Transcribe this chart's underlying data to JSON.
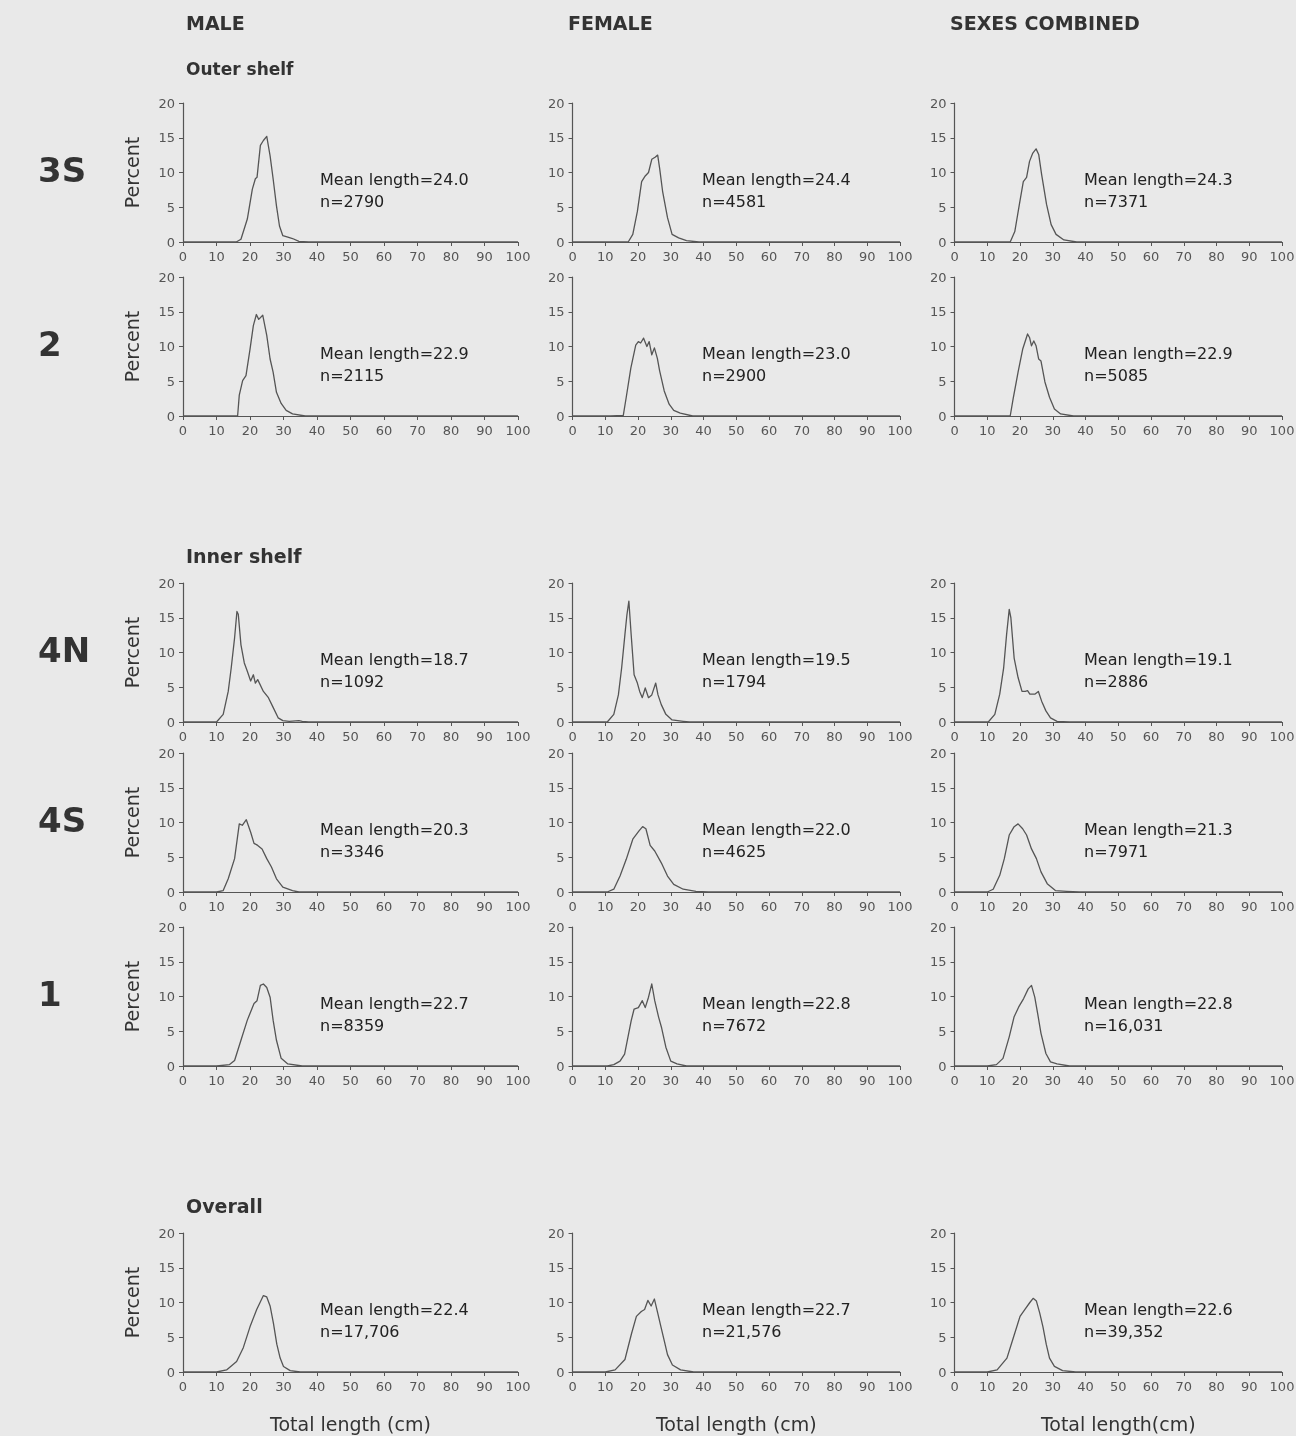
{
  "chart_data": [
    {
      "type": "line",
      "title": "MALE",
      "subtitle": "Outer shelf",
      "ylabel": "Percent",
      "annotations": [
        "3S",
        "Mean length=24.0",
        "n=2790"
      ],
      "color": "#555555",
      "xlim": [
        0,
        100
      ],
      "xticks": [
        0,
        10,
        20,
        30,
        40,
        50,
        60,
        70,
        80,
        90,
        100
      ],
      "ylim": [
        0,
        20
      ],
      "yticks": [
        0,
        5,
        10,
        15,
        20
      ],
      "x": [
        0,
        15.9,
        17.3,
        19.2,
        20.7,
        21.6,
        22.1,
        23.1,
        24.0,
        25.0,
        26.0,
        26.9,
        27.9,
        28.8,
        29.8,
        31.3,
        32.7,
        34.6,
        37.5,
        100
      ],
      "values": [
        0,
        0,
        0.4,
        3.3,
        7.6,
        9.1,
        9.3,
        13.9,
        14.6,
        15.2,
        12.4,
        9.1,
        5.2,
        2.3,
        0.9,
        0.7,
        0.5,
        0.1,
        0,
        0
      ]
    },
    {
      "type": "line",
      "title": "FEMALE",
      "annotations": [
        "Mean length=24.4",
        "n=4581"
      ],
      "color": "#555555",
      "xlim": [
        0,
        100
      ],
      "xticks": [
        0,
        10,
        20,
        30,
        40,
        50,
        60,
        70,
        80,
        90,
        100
      ],
      "ylim": [
        0,
        20
      ],
      "yticks": [
        0,
        5,
        10,
        15,
        20
      ],
      "x": [
        0,
        17,
        18.4,
        19.8,
        21.1,
        22.2,
        23.2,
        24.2,
        25.2,
        26.0,
        26.6,
        27.5,
        29.0,
        30.4,
        32.4,
        34.8,
        38.6,
        100
      ],
      "values": [
        0,
        0,
        1.1,
        4.4,
        8.7,
        9.5,
        10.0,
        11.9,
        12.2,
        12.5,
        10.6,
        7.3,
        3.5,
        1.1,
        0.6,
        0.2,
        0,
        0
      ]
    },
    {
      "type": "line",
      "title": "SEXES COMBINED",
      "annotations": [
        "Mean length=24.3",
        "n=7371"
      ],
      "color": "#555555",
      "xlim": [
        0,
        100
      ],
      "xticks": [
        0,
        10,
        20,
        30,
        40,
        50,
        60,
        70,
        80,
        90,
        100
      ],
      "ylim": [
        0,
        20
      ],
      "yticks": [
        0,
        5,
        10,
        15,
        20
      ],
      "x": [
        0,
        17,
        18.4,
        19.8,
        21.0,
        22.0,
        22.9,
        23.9,
        24.9,
        25.7,
        26.6,
        28.1,
        29.5,
        31.0,
        33.4,
        37.3,
        100
      ],
      "values": [
        0,
        0,
        1.5,
        5.4,
        8.7,
        9.3,
        11.6,
        12.8,
        13.4,
        12.6,
        9.7,
        5.4,
        2.5,
        1.1,
        0.3,
        0,
        0
      ]
    },
    {
      "type": "line",
      "ylabel": "Percent",
      "annotations": [
        "2",
        "Mean length=22.9",
        "n=2115"
      ],
      "color": "#555555",
      "xlim": [
        0,
        100
      ],
      "xticks": [
        0,
        10,
        20,
        30,
        40,
        50,
        60,
        70,
        80,
        90,
        100
      ],
      "ylim": [
        0,
        20
      ],
      "yticks": [
        0,
        5,
        10,
        15,
        20
      ],
      "x": [
        0,
        16.3,
        16.8,
        17.8,
        18.8,
        20.0,
        21.0,
        21.9,
        22.6,
        23.8,
        25.0,
        26.0,
        26.9,
        27.9,
        29.3,
        30.8,
        32.7,
        36.5,
        100
      ],
      "values": [
        0,
        0,
        3.0,
        5.1,
        5.8,
        9.6,
        13.0,
        14.6,
        13.9,
        14.5,
        11.6,
        8.2,
        6.3,
        3.4,
        1.8,
        0.8,
        0.3,
        0,
        0
      ]
    },
    {
      "type": "line",
      "annotations": [
        "Mean length=23.0",
        "n=2900"
      ],
      "color": "#555555",
      "xlim": [
        0,
        100
      ],
      "xticks": [
        0,
        10,
        20,
        30,
        40,
        50,
        60,
        70,
        80,
        90,
        100
      ],
      "ylim": [
        0,
        20
      ],
      "yticks": [
        0,
        5,
        10,
        15,
        20
      ],
      "x": [
        0,
        11.6,
        15.5,
        16.4,
        17.8,
        19.3,
        20.1,
        20.8,
        21.7,
        22.7,
        23.4,
        24.2,
        25.0,
        25.9,
        26.6,
        28.0,
        29.5,
        30.9,
        32.9,
        36.7,
        100
      ],
      "values": [
        0,
        0,
        0.1,
        2.7,
        6.9,
        10.2,
        10.7,
        10.5,
        11.2,
        10.0,
        10.7,
        8.8,
        9.8,
        8.3,
        6.5,
        3.6,
        1.7,
        0.8,
        0.4,
        0,
        0
      ]
    },
    {
      "type": "line",
      "annotations": [
        "Mean length=22.9",
        "n=5085"
      ],
      "color": "#555555",
      "xlim": [
        0,
        100
      ],
      "xticks": [
        0,
        10,
        20,
        30,
        40,
        50,
        60,
        70,
        80,
        90,
        100
      ],
      "ylim": [
        0,
        20
      ],
      "yticks": [
        0,
        5,
        10,
        15,
        20
      ],
      "x": [
        0,
        17,
        17.9,
        19.4,
        20.8,
        22.3,
        22.9,
        23.5,
        24.2,
        24.9,
        25.7,
        26.4,
        27.6,
        29.0,
        30.5,
        32.4,
        36.3,
        100
      ],
      "values": [
        0,
        0,
        2.5,
        6.3,
        9.6,
        11.8,
        11.3,
        10.1,
        10.8,
        10.1,
        8.2,
        7.9,
        4.9,
        2.7,
        1.0,
        0.3,
        0,
        0
      ]
    },
    {
      "type": "line",
      "title": "Inner shelf",
      "ylabel": "Percent",
      "annotations": [
        "4N",
        "Mean length=18.7",
        "n=1092"
      ],
      "color": "#555555",
      "xlim": [
        0,
        100
      ],
      "xticks": [
        0,
        10,
        20,
        30,
        40,
        50,
        60,
        70,
        80,
        90,
        100
      ],
      "ylim": [
        0,
        20
      ],
      "yticks": [
        0,
        5,
        10,
        15,
        20
      ],
      "x": [
        0,
        10,
        12,
        13.5,
        14.4,
        15.4,
        16.1,
        16.5,
        17.3,
        18.3,
        19.2,
        20.2,
        21,
        21.6,
        22.3,
        24,
        25.5,
        26.9,
        28.4,
        29.8,
        31.7,
        34.6,
        35.6,
        37.5,
        100
      ],
      "values": [
        0,
        0,
        1.1,
        4.4,
        7.8,
        12.1,
        15.9,
        15.5,
        11.1,
        8.5,
        7.3,
        5.9,
        6.8,
        5.6,
        6.1,
        4.4,
        3.5,
        2.1,
        0.6,
        0.2,
        0.1,
        0.2,
        0.1,
        0,
        0
      ]
    },
    {
      "type": "line",
      "annotations": [
        "Mean length=19.5",
        "n=1794"
      ],
      "color": "#555555",
      "xlim": [
        0,
        100
      ],
      "xticks": [
        0,
        10,
        20,
        30,
        40,
        50,
        60,
        70,
        80,
        90,
        100
      ],
      "ylim": [
        0,
        20
      ],
      "yticks": [
        0,
        5,
        10,
        15,
        20
      ],
      "x": [
        0,
        10.6,
        12.6,
        14.0,
        15.0,
        16.0,
        16.6,
        17.2,
        17.9,
        18.8,
        19.8,
        20.5,
        21.3,
        22.2,
        23.2,
        24.2,
        25.4,
        26.1,
        27.1,
        28.5,
        30.4,
        33.8,
        35.7,
        100
      ],
      "values": [
        0,
        0,
        1.1,
        3.9,
        7.8,
        12.6,
        15.4,
        17.4,
        12.6,
        6.8,
        5.6,
        4.4,
        3.5,
        4.9,
        3.5,
        3.9,
        5.6,
        3.9,
        2.5,
        1.1,
        0.3,
        0.1,
        0,
        0
      ]
    },
    {
      "type": "line",
      "annotations": [
        "Mean length=19.1",
        "n=2886"
      ],
      "color": "#555555",
      "xlim": [
        0,
        100
      ],
      "xticks": [
        0,
        10,
        20,
        30,
        40,
        50,
        60,
        70,
        80,
        90,
        100
      ],
      "ylim": [
        0,
        20
      ],
      "yticks": [
        0,
        5,
        10,
        15,
        20
      ],
      "x": [
        0,
        10.3,
        12.3,
        13.8,
        15.0,
        15.9,
        16.7,
        17.2,
        18.2,
        19.4,
        20.6,
        21.6,
        22.3,
        23.0,
        24.5,
        25.6,
        26.6,
        27.9,
        29.3,
        31.3,
        35.1,
        100
      ],
      "values": [
        0,
        0,
        1.1,
        4.0,
        7.8,
        12.6,
        16.2,
        15.0,
        9.2,
        6.4,
        4.4,
        4.4,
        4.5,
        4.0,
        4.0,
        4.4,
        3.0,
        1.6,
        0.6,
        0.1,
        0,
        0
      ]
    },
    {
      "type": "line",
      "ylabel": "Percent",
      "annotations": [
        "4S",
        "Mean length=20.3",
        "n=3346"
      ],
      "color": "#555555",
      "xlim": [
        0,
        100
      ],
      "xticks": [
        0,
        10,
        20,
        30,
        40,
        50,
        60,
        70,
        80,
        90,
        100
      ],
      "ylim": [
        0,
        20
      ],
      "yticks": [
        0,
        5,
        10,
        15,
        20
      ],
      "x": [
        0,
        10,
        12,
        13.5,
        15.4,
        16.8,
        17.7,
        18.9,
        20.2,
        21.2,
        22.3,
        23.6,
        25,
        26.4,
        27.9,
        29.8,
        32.7,
        34.6,
        100
      ],
      "values": [
        0,
        0,
        0.2,
        1.9,
        4.8,
        9.8,
        9.6,
        10.4,
        8.6,
        7.0,
        6.7,
        6.2,
        4.8,
        3.6,
        1.9,
        0.7,
        0.2,
        0,
        0
      ]
    },
    {
      "type": "line",
      "annotations": [
        "Mean length=22.0",
        "n=4625"
      ],
      "color": "#555555",
      "xlim": [
        0,
        100
      ],
      "xticks": [
        0,
        10,
        20,
        30,
        40,
        50,
        60,
        70,
        80,
        90,
        100
      ],
      "ylim": [
        0,
        20
      ],
      "yticks": [
        0,
        5,
        10,
        15,
        20
      ],
      "x": [
        0,
        10.6,
        12.6,
        14.5,
        16.4,
        18.4,
        20.3,
        21.4,
        22.4,
        23.7,
        25.1,
        27.1,
        29.0,
        30.9,
        33.8,
        37.7,
        41.5,
        100
      ],
      "values": [
        0,
        0,
        0.4,
        2.3,
        4.7,
        7.6,
        8.8,
        9.4,
        9.1,
        6.7,
        5.9,
        4.2,
        2.3,
        1.1,
        0.4,
        0.1,
        0,
        0
      ]
    },
    {
      "type": "line",
      "annotations": [
        "Mean length=21.3",
        "n=7971"
      ],
      "color": "#555555",
      "xlim": [
        0,
        100
      ],
      "xticks": [
        0,
        10,
        20,
        30,
        40,
        50,
        60,
        70,
        80,
        90,
        100
      ],
      "ylim": [
        0,
        20
      ],
      "yticks": [
        0,
        5,
        10,
        15,
        20
      ],
      "x": [
        0,
        10,
        11.8,
        13.8,
        15.2,
        16.7,
        18.2,
        19.4,
        20.8,
        22.0,
        23.5,
        25.0,
        26.4,
        28.3,
        30.8,
        34.2,
        38.1,
        100
      ],
      "values": [
        0,
        0,
        0.4,
        2.4,
        4.8,
        8.2,
        9.4,
        9.8,
        9.1,
        8.2,
        6.2,
        4.8,
        2.9,
        1.2,
        0.2,
        0.1,
        0,
        0
      ]
    },
    {
      "type": "line",
      "ylabel": "Percent",
      "annotations": [
        "1",
        "Mean length=22.7",
        "n=8359"
      ],
      "color": "#555555",
      "xlim": [
        0,
        100
      ],
      "xticks": [
        0,
        10,
        20,
        30,
        40,
        50,
        60,
        70,
        80,
        90,
        100
      ],
      "ylim": [
        0,
        20
      ],
      "yticks": [
        0,
        5,
        10,
        15,
        20
      ],
      "x": [
        0,
        10,
        13.9,
        15.4,
        17.3,
        19.2,
        21.2,
        22.1,
        23.1,
        24.0,
        25.0,
        26.0,
        26.9,
        27.9,
        29.3,
        31.3,
        35.6,
        100
      ],
      "values": [
        0,
        0,
        0.2,
        0.8,
        3.7,
        6.6,
        9.0,
        9.4,
        11.6,
        11.8,
        11.3,
        9.9,
        6.6,
        3.7,
        1.1,
        0.3,
        0,
        0
      ]
    },
    {
      "type": "line",
      "annotations": [
        "Mean length=22.8",
        "n=7672"
      ],
      "color": "#555555",
      "xlim": [
        0,
        100
      ],
      "xticks": [
        0,
        10,
        20,
        30,
        40,
        50,
        60,
        70,
        80,
        90,
        100
      ],
      "ylim": [
        0,
        20
      ],
      "yticks": [
        0,
        5,
        10,
        15,
        20
      ],
      "x": [
        0,
        10.6,
        12.6,
        14.5,
        15.9,
        17.9,
        18.8,
        20.1,
        21.3,
        22.2,
        23.2,
        24.2,
        25.1,
        26.3,
        27.2,
        28.5,
        30.0,
        31.9,
        34.8,
        100
      ],
      "values": [
        0,
        0,
        0.2,
        0.7,
        1.7,
        6.5,
        8.2,
        8.4,
        9.4,
        8.4,
        9.9,
        11.8,
        9.4,
        7.0,
        5.5,
        2.7,
        0.7,
        0.3,
        0,
        0
      ]
    },
    {
      "type": "line",
      "annotations": [
        "Mean length=22.8",
        "n=16,031"
      ],
      "color": "#555555",
      "xlim": [
        0,
        100
      ],
      "xticks": [
        0,
        10,
        20,
        30,
        40,
        50,
        60,
        70,
        80,
        90,
        100
      ],
      "ylim": [
        0,
        20
      ],
      "yticks": [
        0,
        5,
        10,
        15,
        20
      ],
      "x": [
        0,
        10,
        12.8,
        14.8,
        16.7,
        18.2,
        19.6,
        21.1,
        22.5,
        23.5,
        24.5,
        25.4,
        26.4,
        27.9,
        29.3,
        31.3,
        35.1,
        100
      ],
      "values": [
        0,
        0,
        0.2,
        1.1,
        4.2,
        7.1,
        8.5,
        9.7,
        11.1,
        11.6,
        9.9,
        7.5,
        4.7,
        1.8,
        0.6,
        0.3,
        0,
        0
      ]
    },
    {
      "type": "line",
      "title": "Overall",
      "ylabel": "Percent",
      "xlabel": "Total length (cm)",
      "annotations": [
        "Mean length=22.4",
        "n=17,706"
      ],
      "color": "#555555",
      "xlim": [
        0,
        100
      ],
      "xticks": [
        0,
        10,
        20,
        30,
        40,
        50,
        60,
        70,
        80,
        90,
        100
      ],
      "ylim": [
        0,
        20
      ],
      "yticks": [
        0,
        5,
        10,
        15,
        20
      ],
      "x": [
        0,
        10,
        13,
        16,
        18,
        20,
        22,
        23,
        24,
        25,
        26,
        27,
        28,
        29,
        30,
        32,
        35,
        100
      ],
      "values": [
        0,
        0,
        0.3,
        1.5,
        3.5,
        6.5,
        9,
        10,
        11,
        10.8,
        9.5,
        7,
        4,
        2,
        0.8,
        0.2,
        0,
        0
      ]
    },
    {
      "type": "line",
      "xlabel": "Total length (cm)",
      "annotations": [
        "Mean length=22.7",
        "n=21,576"
      ],
      "color": "#555555",
      "xlim": [
        0,
        100
      ],
      "xticks": [
        0,
        10,
        20,
        30,
        40,
        50,
        60,
        70,
        80,
        90,
        100
      ],
      "ylim": [
        0,
        20
      ],
      "yticks": [
        0,
        5,
        10,
        15,
        20
      ],
      "x": [
        0,
        10,
        13,
        16,
        18,
        19.5,
        21,
        22,
        23,
        24,
        25,
        26,
        27,
        28,
        29,
        30.5,
        33,
        37,
        100
      ],
      "values": [
        0,
        0,
        0.3,
        1.8,
        5.5,
        8,
        8.7,
        9,
        10.3,
        9.5,
        10.5,
        8.5,
        6.5,
        4.5,
        2.5,
        1,
        0.3,
        0,
        0
      ]
    },
    {
      "type": "line",
      "xlabel": "Total length(cm)",
      "annotations": [
        "Mean length=22.6",
        "n=39,352"
      ],
      "color": "#555555",
      "xlim": [
        0,
        100
      ],
      "xticks": [
        0,
        10,
        20,
        30,
        40,
        50,
        60,
        70,
        80,
        90,
        100
      ],
      "ylim": [
        0,
        20
      ],
      "yticks": [
        0,
        5,
        10,
        15,
        20
      ],
      "x": [
        0,
        10,
        13,
        16,
        18,
        20,
        21.5,
        23,
        24,
        25,
        26,
        27,
        28,
        29,
        30.5,
        33,
        37,
        100
      ],
      "values": [
        0,
        0,
        0.3,
        2,
        5,
        8,
        9,
        10,
        10.6,
        10.2,
        8.5,
        6.5,
        4,
        2,
        0.8,
        0.2,
        0,
        0
      ]
    }
  ]
}
